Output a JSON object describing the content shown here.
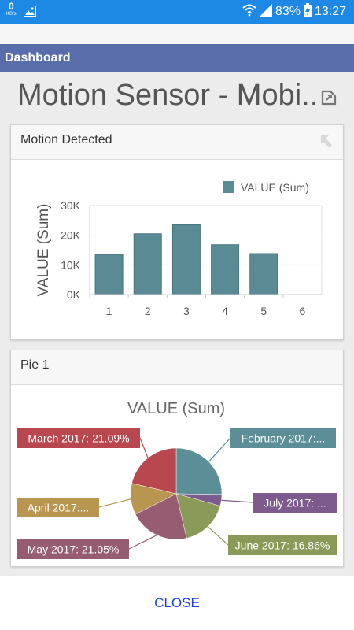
{
  "status_bar": {
    "speed_value": "0",
    "speed_unit": "KB/s",
    "battery": "83%",
    "time": "13:27"
  },
  "app_bar": {
    "title": "Dashboard"
  },
  "page": {
    "title": "Motion Sensor - Mobi..."
  },
  "bar_card": {
    "title": "Motion Detected"
  },
  "pie_card": {
    "title": "Pie 1"
  },
  "footer": {
    "close_label": "CLOSE"
  },
  "colors": {
    "status_bar": "#1e88e5",
    "app_bar": "#5a6dab",
    "bar": "#5a8a93",
    "close": "#1a44e0"
  },
  "chart_data": [
    {
      "type": "bar",
      "title": "",
      "xlabel": "",
      "ylabel": "VALUE (Sum)",
      "categories": [
        "1",
        "2",
        "3",
        "4",
        "5",
        "6"
      ],
      "series": [
        {
          "name": "VALUE (Sum)",
          "values": [
            13500,
            20500,
            23500,
            16800,
            13800,
            0
          ]
        }
      ],
      "ylim": [
        0,
        30000
      ],
      "yticks": [
        "0K",
        "10K",
        "20K",
        "30K"
      ],
      "ytick_values": [
        0,
        10000,
        20000,
        30000
      ],
      "legend": "top-right",
      "grid": true
    },
    {
      "type": "pie",
      "title": "VALUE (Sum)",
      "slices": [
        {
          "label": "February 2017:...",
          "value": 25.0,
          "color": "#5b8e96"
        },
        {
          "label": "July 2017: ...",
          "value": 4.0,
          "color": "#7d5b8c"
        },
        {
          "label": "June 2017: 16.86%",
          "value": 16.86,
          "color": "#8a9a58"
        },
        {
          "label": "May 2017: 21.05%",
          "value": 21.05,
          "color": "#965c72"
        },
        {
          "label": "April 2017:...",
          "value": 11.0,
          "color": "#b89650"
        },
        {
          "label": "March 2017: 21.09%",
          "value": 21.09,
          "color": "#b8474f"
        }
      ]
    }
  ]
}
